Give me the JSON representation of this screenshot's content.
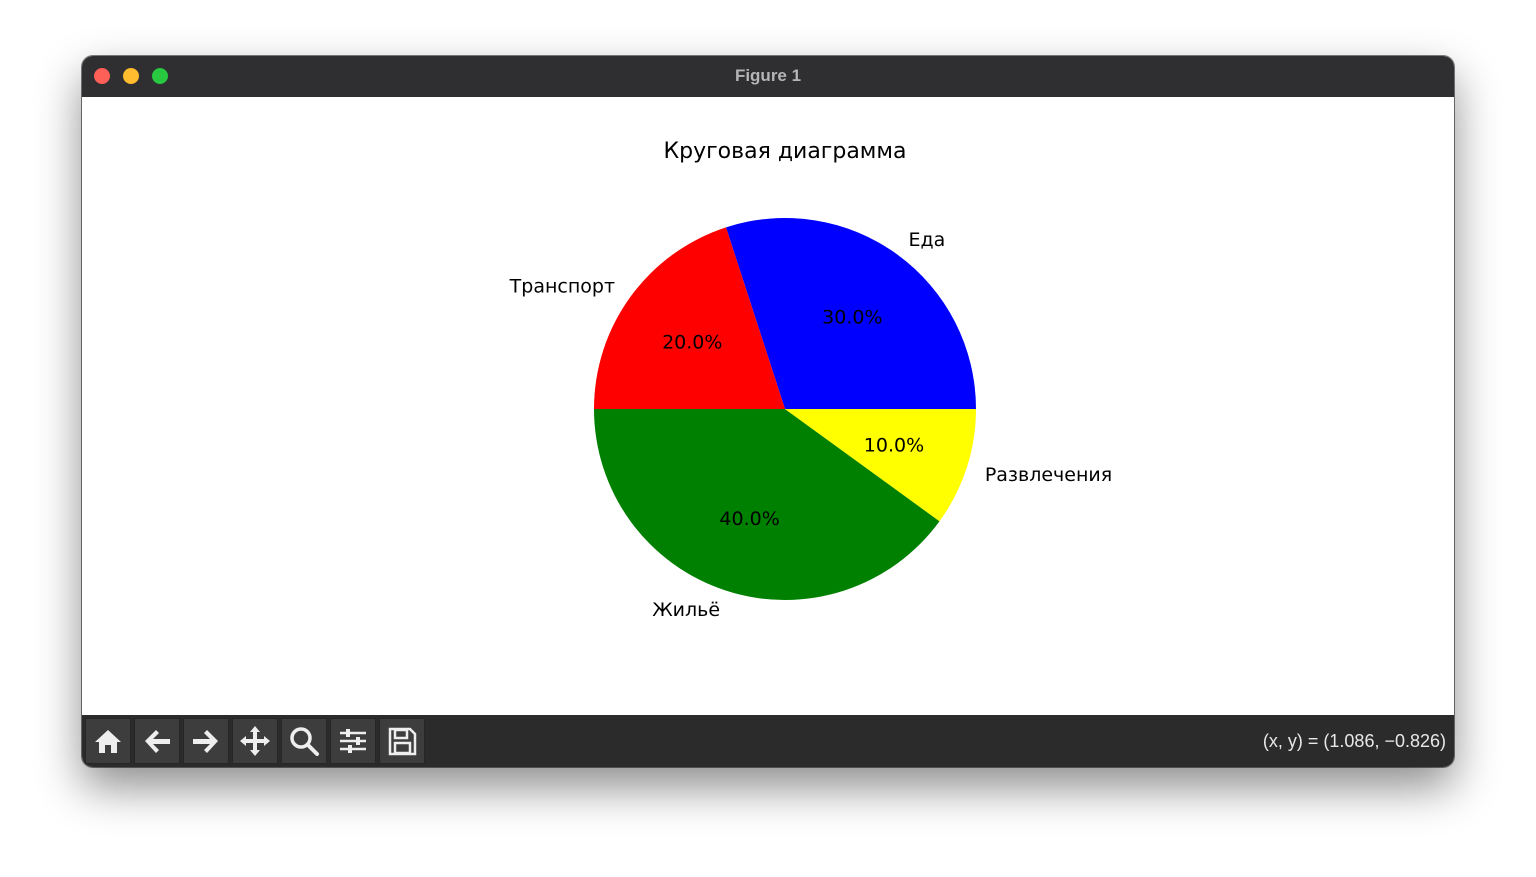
{
  "window": {
    "title": "Figure 1",
    "traffic_lights": [
      "#fe5f57",
      "#febc2e",
      "#28c840"
    ]
  },
  "toolbar": {
    "buttons": [
      {
        "icon": "home-icon"
      },
      {
        "icon": "back-arrow-icon"
      },
      {
        "icon": "forward-arrow-icon"
      },
      {
        "icon": "pan-icon"
      },
      {
        "icon": "zoom-icon"
      },
      {
        "icon": "configure-subplots-icon"
      },
      {
        "icon": "save-icon"
      }
    ],
    "coords": "(x, y) = (1.086, −0.826)"
  },
  "chart_data": {
    "type": "pie",
    "title": "Круговая диаграмма",
    "labels": [
      "Еда",
      "Транспорт",
      "Жильё",
      "Развлечения"
    ],
    "values": [
      30,
      20,
      40,
      10
    ],
    "pct_labels": [
      "30.0%",
      "20.0%",
      "40.0%",
      "10.0%"
    ],
    "colors": [
      "#0000ff",
      "#ff0000",
      "#008000",
      "#ffff00"
    ],
    "startangle": 0,
    "counterclockwise": true
  }
}
